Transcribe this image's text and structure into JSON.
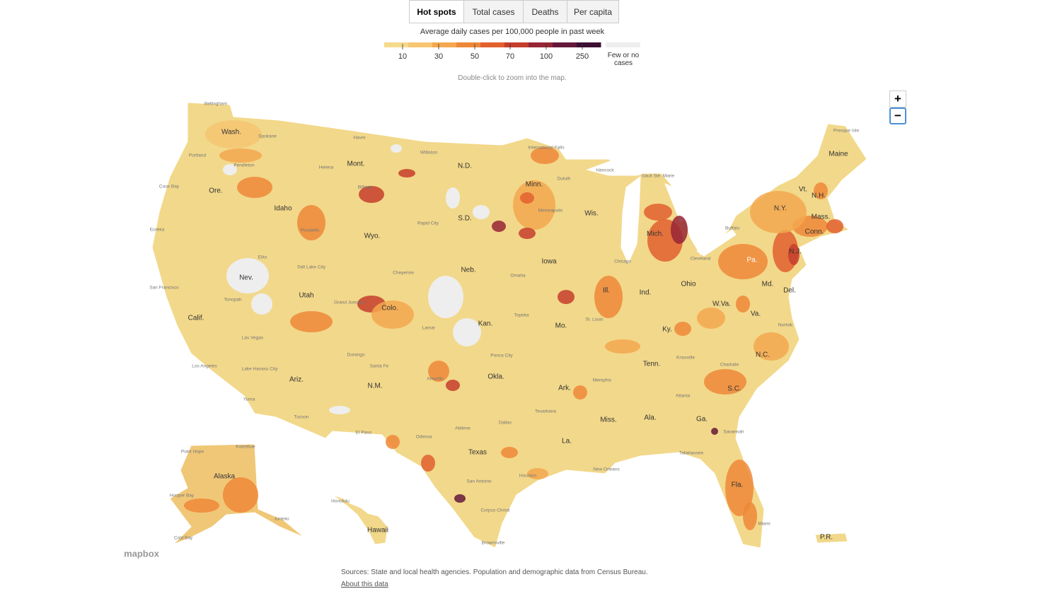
{
  "tabs": [
    "Hot spots",
    "Total cases",
    "Deaths",
    "Per capita"
  ],
  "legend": {
    "title": "Average daily cases per 100,000 people in past week",
    "ticks": [
      "10",
      "30",
      "50",
      "70",
      "100",
      "250"
    ],
    "colors": [
      "#f5da8e",
      "#f6c672",
      "#f3a84f",
      "#ee8838",
      "#e2602e",
      "#c53e2c",
      "#962535",
      "#65193a",
      "#3b0f33"
    ],
    "none_label": "Few or no cases",
    "none_color": "#eeeeee"
  },
  "hint": "Double-click to zoom into the map.",
  "zoom": [
    "+",
    "−"
  ],
  "state_labels": [
    "Wash.",
    "Ore.",
    "Calif.",
    "Nev.",
    "Idaho",
    "Mont.",
    "Wyo.",
    "Utah",
    "Colo.",
    "Ariz.",
    "N.M.",
    "N.D.",
    "S.D.",
    "Neb.",
    "Kan.",
    "Okla.",
    "Texas",
    "Minn.",
    "Iowa",
    "Mo.",
    "Ark.",
    "La.",
    "Wis.",
    "Ill.",
    "Mich.",
    "Ind.",
    "Ohio",
    "Ky.",
    "Tenn.",
    "Miss.",
    "Ala.",
    "Ga.",
    "Fla.",
    "S.C.",
    "N.C.",
    "Va.",
    "W.Va.",
    "Md.",
    "Del.",
    "Pa.",
    "N.J.",
    "N.Y.",
    "Conn.",
    "Mass.",
    "Vt.",
    "N.H.",
    "Maine",
    "Alaska",
    "Hawaii",
    "P.R."
  ],
  "city_labels": [
    "Bellingham",
    "Spokane",
    "Portland",
    "Pendleton",
    "Coos Bay",
    "Eureka",
    "Helena",
    "Havre",
    "Williston",
    "Billings",
    "Pocatello",
    "Elko",
    "Salt Lake City",
    "Rapid City",
    "Cheyenne",
    "San Francisco",
    "Tonopah",
    "Grand Junction",
    "Las Vegas",
    "Durango",
    "Lamar",
    "Los Angeles",
    "Lake Havasu City",
    "Santa Fe",
    "Amarillo",
    "Ponca City",
    "Tucson",
    "Yuma",
    "El Paso",
    "Abilene",
    "Dallas",
    "Odessa",
    "San Antonio",
    "Houston",
    "Corpus Christi",
    "Brownsville",
    "Topeka",
    "Omaha",
    "St. Louis",
    "Chicago",
    "Minneapolis",
    "Duluth",
    "International Falls",
    "Hancock",
    "Sault Ste. Marie",
    "Cleveland",
    "Memphis",
    "Texarkana",
    "New Orleans",
    "Atlanta",
    "Savannah",
    "Tallahassee",
    "Charlotte",
    "Knoxville",
    "Norfolk",
    "Buffalo",
    "Presque Isle",
    "Point Hope",
    "Kotzebue",
    "Hooper Bay",
    "Juneau",
    "Cold Bay",
    "Honolulu",
    "Miami"
  ],
  "attribution": "mapbox",
  "sources": "Sources: State and local health agencies. Population and demographic data from Census Bureau.",
  "about_link": "About this data"
}
